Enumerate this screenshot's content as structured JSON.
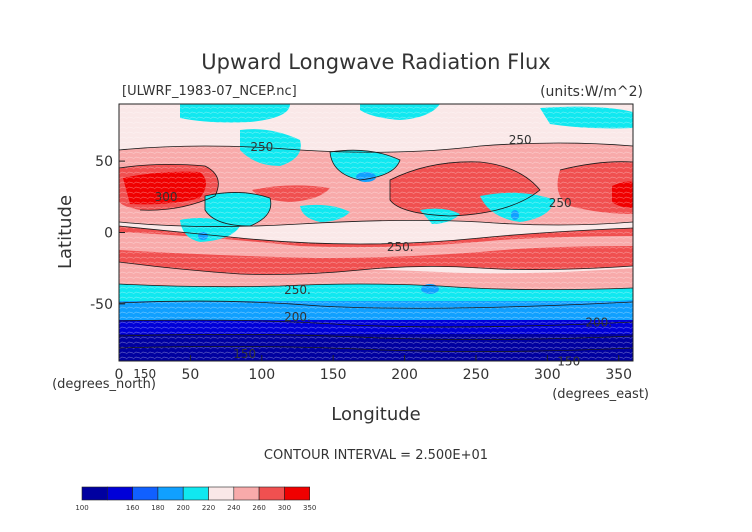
{
  "chart_data": {
    "type": "heatmap",
    "title": "Upward Longwave Radiation Flux",
    "subtitle_left": "[ULWRF_1983-07_NCEP.nc]",
    "subtitle_right": "(units:W/m^2)",
    "xlabel": "Longitude",
    "ylabel": "Latitude",
    "x_unit_label": "(degrees_east)",
    "y_unit_label": "(degrees_north)",
    "xlim": [
      0,
      360
    ],
    "ylim": [
      -90,
      90
    ],
    "x_ticks": [
      0,
      50,
      100,
      150,
      200,
      250,
      300,
      350
    ],
    "y_ticks": [
      -50,
      0,
      50
    ],
    "contour_interval_text": "CONTOUR INTERVAL = 2.500E+01",
    "contour_labels": [
      {
        "text": "250",
        "lon": 100,
        "lat": 57
      },
      {
        "text": "300",
        "lon": 33,
        "lat": 22
      },
      {
        "text": "250",
        "lon": 281,
        "lat": 62
      },
      {
        "text": "250",
        "lon": 309,
        "lat": 18
      },
      {
        "text": "250.",
        "lon": 197,
        "lat": -13
      },
      {
        "text": "250.",
        "lon": 125,
        "lat": -43
      },
      {
        "text": "200.",
        "lon": 125,
        "lat": -62
      },
      {
        "text": "200.",
        "lon": 336,
        "lat": -66
      },
      {
        "text": "150",
        "lon": 88,
        "lat": -88
      },
      {
        "text": "150",
        "lon": 315,
        "lat": -93
      },
      {
        "text": "150",
        "lon": 18,
        "lat": -102
      }
    ],
    "colorbar": {
      "levels": [
        100,
        160,
        180,
        200,
        220,
        240,
        260,
        300,
        350
      ],
      "colors": [
        "#0000a0",
        "#0000d8",
        "#1060ff",
        "#10a0ff",
        "#10e8f0",
        "#fae8e8",
        "#f8aaaa",
        "#f05050",
        "#f00000"
      ]
    }
  }
}
